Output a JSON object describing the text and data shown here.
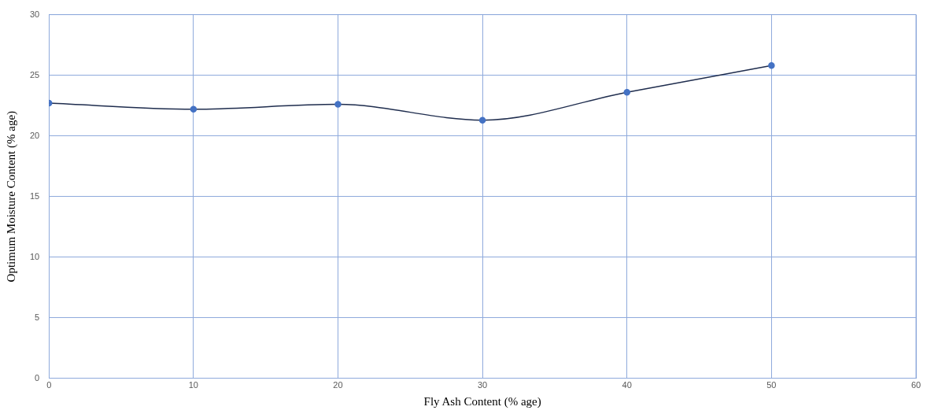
{
  "chart_data": {
    "type": "line",
    "xlabel": "Fly Ash Content (% age)",
    "ylabel": "Optimum Moisture Content (% age)",
    "x": [
      0,
      10,
      20,
      30,
      40,
      50
    ],
    "series": [
      {
        "color": "#1f2d4e",
        "values": [
          22.7,
          22.2,
          22.6,
          21.3,
          23.6,
          25.8
        ]
      }
    ],
    "xlim": [
      0,
      60
    ],
    "xticks": [
      0,
      10,
      20,
      30,
      40,
      50,
      60
    ],
    "ylim": [
      0,
      30
    ],
    "yticks": [
      0,
      5,
      10,
      15,
      20,
      25,
      30
    ],
    "grid": true,
    "legend": false,
    "marker": "circle",
    "line_style": "solid"
  }
}
